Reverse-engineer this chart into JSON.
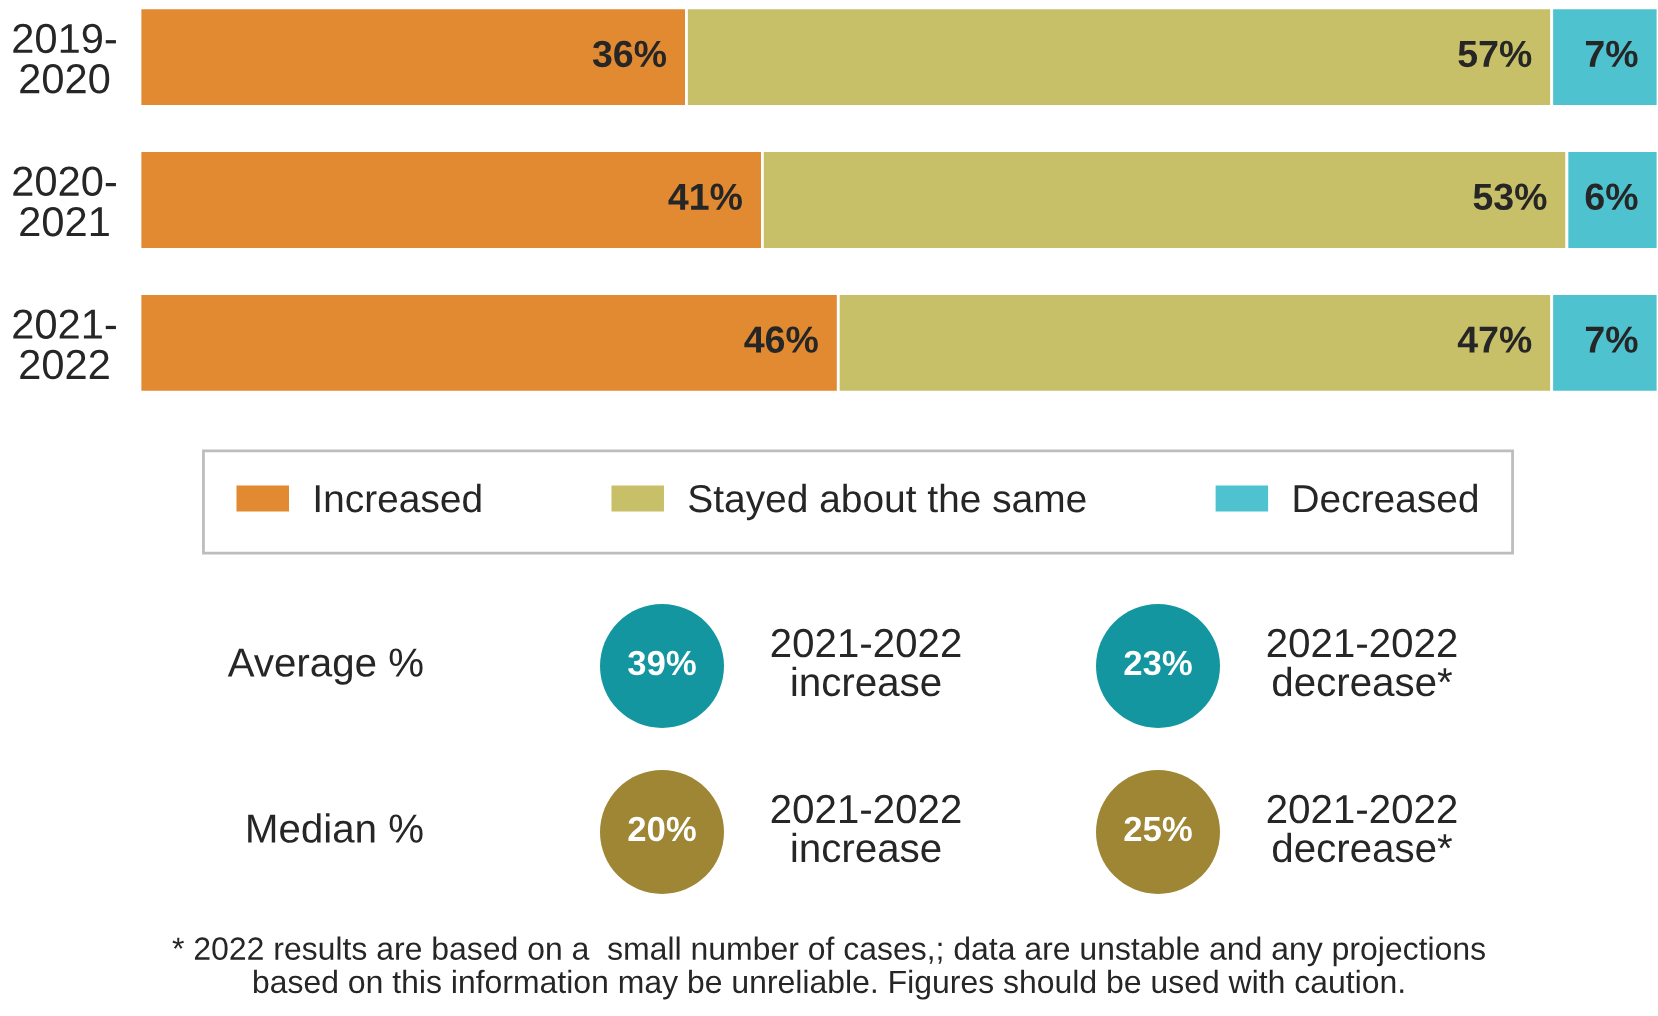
{
  "chart_data": [
    {
      "type": "bar",
      "orientation": "horizontal",
      "stacked": true,
      "categories": [
        "2019-2020",
        "2020-2021",
        "2021-2022"
      ],
      "series": [
        {
          "name": "Increased",
          "color": "#e18a32",
          "values": [
            36,
            41,
            46
          ],
          "value_labels": [
            "36%",
            "41%",
            "46%"
          ]
        },
        {
          "name": "Stayed about the same",
          "color": "#c8c068",
          "values": [
            57,
            53,
            47
          ],
          "value_labels": [
            "57%",
            "53%",
            "47%"
          ]
        },
        {
          "name": "Decreased",
          "color": "#4ec3cf",
          "values": [
            7,
            6,
            7
          ],
          "value_labels": [
            "7%",
            "6%",
            "7%"
          ]
        }
      ],
      "legend": "bottom",
      "tick_labels": "y"
    },
    {
      "type": "other",
      "categories": [
        "Average %",
        "Median %"
      ],
      "series": [
        {
          "name": "2021-2022 increase",
          "colors": [
            "#1496a0",
            "#9e8634"
          ],
          "values": [
            39,
            20
          ],
          "value_labels": [
            "39%",
            "20%"
          ]
        },
        {
          "name": "2021-2022 decrease*",
          "colors": [
            "#1496a0",
            "#9e8634"
          ],
          "values": [
            23,
            25
          ],
          "value_labels": [
            "23%",
            "25%"
          ]
        }
      ],
      "annotations": [
        "* 2022 results are based on a  small number of cases,; data are unstable and any projections based on this information may be unreliable. Figures should be used with caution."
      ]
    }
  ]
}
